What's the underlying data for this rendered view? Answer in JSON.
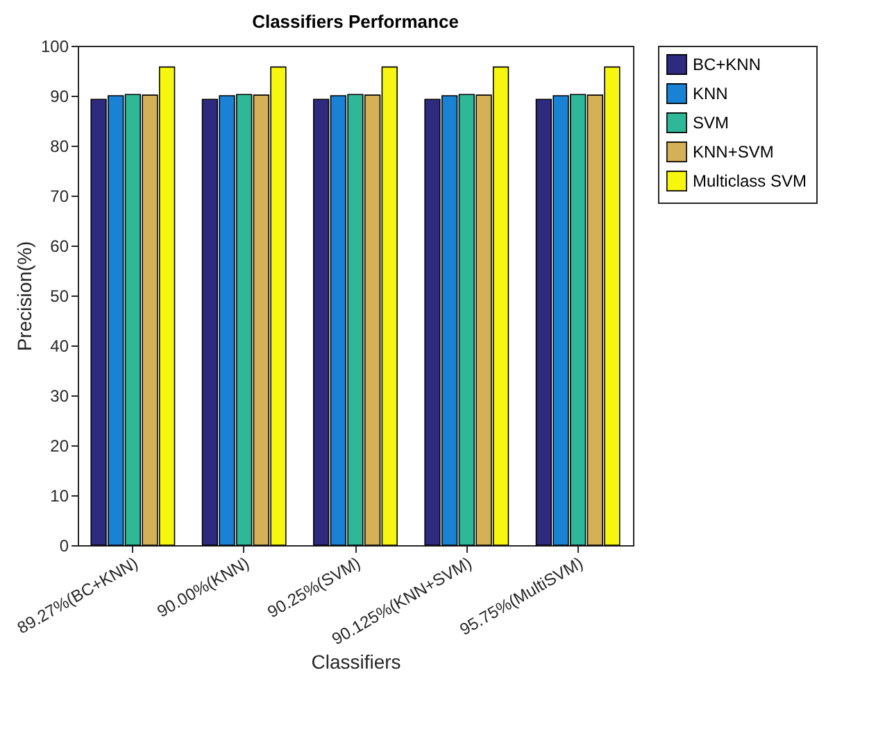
{
  "chart_data": {
    "type": "bar",
    "title": "Classifiers Performance",
    "xlabel": "Classifiers",
    "ylabel": "Precision(%)",
    "categories": [
      "89.27%(BC+KNN)",
      "90.00%(KNN)",
      "90.25%(SVM)",
      "90.125%(KNN+SVM)",
      "95.75%(MultiSVM)"
    ],
    "series": [
      {
        "name": "BC+KNN",
        "color": "#2e2a7e",
        "values": [
          89.27,
          89.27,
          89.27,
          89.27,
          89.27
        ]
      },
      {
        "name": "KNN",
        "color": "#1a82d4",
        "values": [
          90.0,
          90.0,
          90.0,
          90.0,
          90.0
        ]
      },
      {
        "name": "SVM",
        "color": "#2eb898",
        "values": [
          90.25,
          90.25,
          90.25,
          90.25,
          90.25
        ]
      },
      {
        "name": "KNN+SVM",
        "color": "#d4b156",
        "values": [
          90.125,
          90.125,
          90.125,
          90.125,
          90.125
        ]
      },
      {
        "name": "Multiclass SVM",
        "color": "#f6f60e",
        "values": [
          95.75,
          95.75,
          95.75,
          95.75,
          95.75
        ]
      }
    ],
    "ylim": [
      0,
      100
    ],
    "yticks": [
      0,
      10,
      20,
      30,
      40,
      50,
      60,
      70,
      80,
      90,
      100
    ],
    "grid": false,
    "legend": "top right"
  }
}
